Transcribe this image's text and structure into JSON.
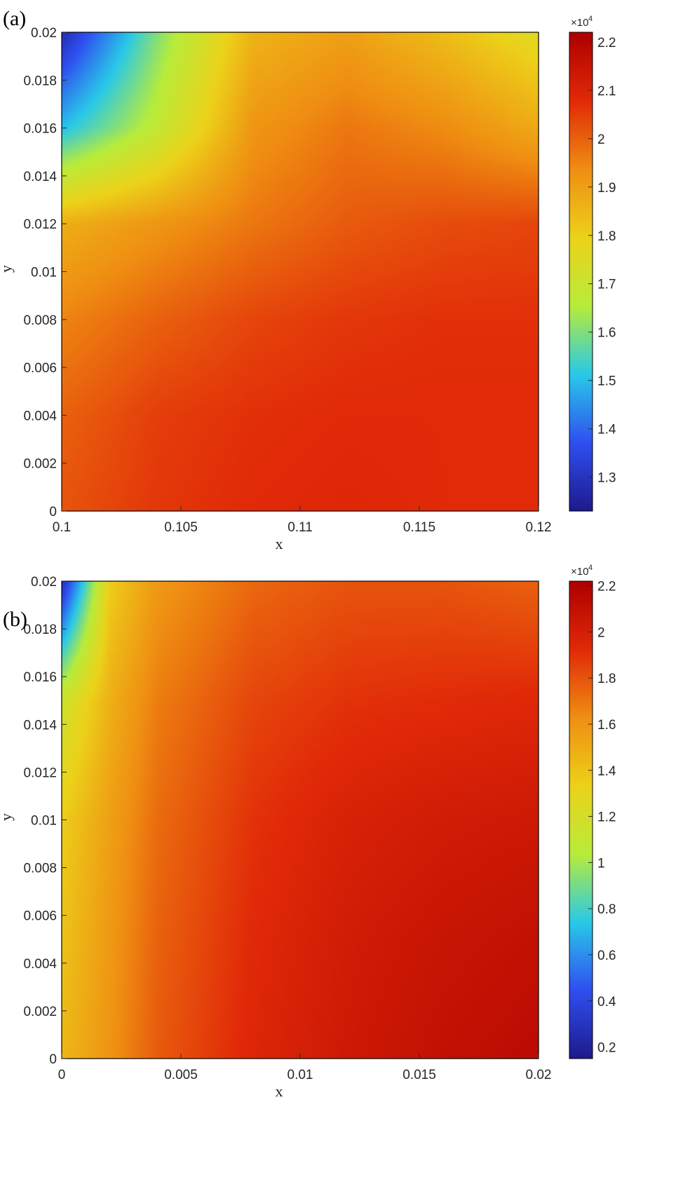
{
  "colors": {
    "colormap": [
      "#1e1a8c",
      "#2f4ff0",
      "#29c9e8",
      "#b8ec3a",
      "#ecd21a",
      "#ef8e12",
      "#e12a08",
      "#ad0000"
    ]
  },
  "chart_data": [
    {
      "type": "heatmap",
      "panel_label": "(a)",
      "xlabel": "x",
      "ylabel": "y",
      "xlim": [
        0.1,
        0.12
      ],
      "ylim": [
        0,
        0.02
      ],
      "x_ticks": [
        "0.1",
        "0.105",
        "0.11",
        "0.115",
        "0.12"
      ],
      "y_ticks": [
        "0",
        "0.002",
        "0.004",
        "0.006",
        "0.008",
        "0.01",
        "0.012",
        "0.014",
        "0.016",
        "0.018",
        "0.02"
      ],
      "colorbar": {
        "range": [
          1.23,
          2.22
        ],
        "ticks": [
          "1.3",
          "1.4",
          "1.5",
          "1.6",
          "1.7",
          "1.8",
          "1.9",
          "2",
          "2.1",
          "2.2"
        ],
        "multiplier": "×10",
        "multiplier_exp": "4"
      },
      "x": [
        0.1,
        0.104,
        0.108,
        0.112,
        0.116,
        0.12
      ],
      "y": [
        0,
        0.004,
        0.008,
        0.012,
        0.016,
        0.02
      ],
      "z": [
        [
          2.02,
          2.06,
          2.08,
          2.09,
          2.08,
          2.08
        ],
        [
          2.0,
          2.05,
          2.07,
          2.08,
          2.08,
          2.08
        ],
        [
          1.95,
          2.0,
          2.04,
          2.06,
          2.07,
          2.07
        ],
        [
          1.87,
          1.92,
          1.97,
          2.01,
          2.03,
          2.04
        ],
        [
          1.5,
          1.68,
          1.92,
          1.97,
          1.94,
          1.88
        ],
        [
          1.28,
          1.6,
          1.86,
          1.9,
          1.84,
          1.76
        ]
      ]
    },
    {
      "type": "heatmap",
      "panel_label": "(b)",
      "xlabel": "x",
      "ylabel": "y",
      "xlim": [
        0,
        0.02
      ],
      "ylim": [
        0,
        0.02
      ],
      "x_ticks": [
        "0",
        "0.005",
        "0.01",
        "0.015",
        "0.02"
      ],
      "y_ticks": [
        "0",
        "0.002",
        "0.004",
        "0.006",
        "0.008",
        "0.01",
        "0.012",
        "0.014",
        "0.016",
        "0.018",
        "0.02"
      ],
      "colorbar": {
        "range": [
          0.15,
          2.22
        ],
        "ticks": [
          "0.2",
          "0.4",
          "0.6",
          "0.8",
          "1",
          "1.2",
          "1.4",
          "1.6",
          "1.8",
          "2",
          "2.2"
        ],
        "multiplier": "×10",
        "multiplier_exp": "4"
      },
      "x": [
        0,
        0.002,
        0.004,
        0.008,
        0.012,
        0.016,
        0.02
      ],
      "y": [
        0,
        0.005,
        0.01,
        0.015,
        0.02
      ],
      "z": [
        [
          1.45,
          1.6,
          1.78,
          1.95,
          2.04,
          2.1,
          2.14
        ],
        [
          1.4,
          1.58,
          1.76,
          1.93,
          2.02,
          2.07,
          2.1
        ],
        [
          1.35,
          1.55,
          1.73,
          1.9,
          1.98,
          2.02,
          2.04
        ],
        [
          1.15,
          1.48,
          1.68,
          1.84,
          1.9,
          1.92,
          1.94
        ],
        [
          0.25,
          1.35,
          1.58,
          1.74,
          1.8,
          1.8,
          1.76
        ]
      ]
    }
  ]
}
